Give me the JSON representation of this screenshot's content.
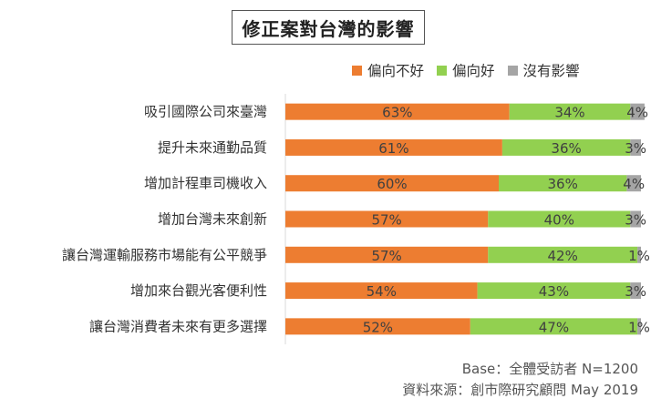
{
  "chart_data": {
    "type": "bar",
    "orientation": "horizontal",
    "stacked": true,
    "title": "修正案對台灣的影響",
    "legend_position": "top-right",
    "categories": [
      "吸引國際公司來臺灣",
      "提升未來通勤品質",
      "增加計程車司機收入",
      "增加台灣未來創新",
      "讓台灣運輸服務市場能有公平競爭",
      "增加來台觀光客便利性",
      "讓台灣消費者未來有更多選擇"
    ],
    "series": [
      {
        "name": "偏向不好",
        "color": "#ED7D31",
        "values": [
          63,
          61,
          60,
          57,
          57,
          54,
          52
        ]
      },
      {
        "name": "偏向好",
        "color": "#92D050",
        "values": [
          34,
          36,
          36,
          40,
          42,
          43,
          47
        ]
      },
      {
        "name": "沒有影響",
        "color": "#A5A5A5",
        "values": [
          4,
          3,
          4,
          3,
          1,
          3,
          1
        ]
      }
    ],
    "value_suffix": "%",
    "xlim": [
      0,
      100
    ],
    "grid": false
  },
  "footer": {
    "base": "Base：全體受訪者 N=1200",
    "source": "資料來源：創市際研究顧問 May 2019"
  }
}
